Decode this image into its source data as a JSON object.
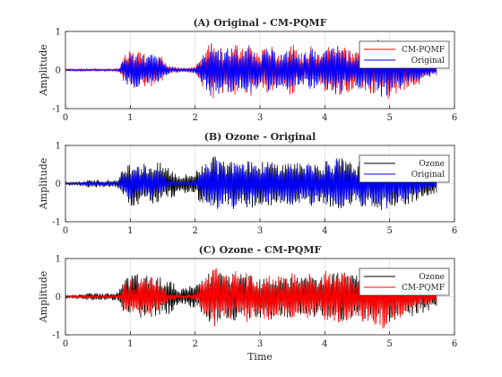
{
  "colors": {
    "black": "#000000",
    "red": "#ff0000",
    "blue": "#0000ff",
    "grid": "#dcdcdc"
  },
  "chart_data": [
    {
      "type": "line",
      "title": "(A)  Original - CM-PQMF",
      "xlabel": "",
      "ylabel": "Amplitude",
      "xlim": [
        0,
        6
      ],
      "ylim": [
        -1,
        1
      ],
      "xticks": [
        "0",
        "1",
        "2",
        "3",
        "4",
        "5",
        "6"
      ],
      "yticks": [
        "1",
        "0",
        "-1"
      ],
      "grid": true,
      "legend_position": "top-right",
      "series": [
        {
          "name": "CM-PQMF",
          "color": "red",
          "envelope": [
            0.03,
            0.03,
            0.03,
            0.03,
            0.03,
            0.03,
            0.03,
            0.03,
            0.03,
            0.03,
            0.03,
            0.03,
            0.35,
            0.48,
            0.5,
            0.52,
            0.48,
            0.45,
            0.5,
            0.42,
            0.35,
            0.15,
            0.1,
            0.08,
            0.05,
            0.05,
            0.08,
            0.1,
            0.35,
            0.55,
            0.75,
            0.8,
            0.7,
            0.6,
            0.65,
            0.7,
            0.6,
            0.55,
            0.75,
            0.6,
            0.5,
            0.55,
            0.65,
            0.6,
            0.55,
            0.5,
            0.6,
            0.7,
            0.5,
            0.45,
            0.55,
            0.65,
            0.5,
            0.4,
            0.7,
            0.6,
            0.75,
            0.8,
            0.65,
            0.55,
            0.5,
            0.6,
            0.7,
            0.65,
            0.75,
            0.8,
            0.85,
            0.75,
            0.65,
            0.6,
            0.55,
            0.5,
            0.45,
            0.4,
            0.3,
            0.25,
            0.2,
            0.15
          ]
        },
        {
          "name": "Original",
          "color": "blue",
          "envelope": [
            0.02,
            0.02,
            0.02,
            0.02,
            0.02,
            0.02,
            0.02,
            0.02,
            0.02,
            0.02,
            0.02,
            0.02,
            0.3,
            0.42,
            0.45,
            0.45,
            0.42,
            0.4,
            0.45,
            0.38,
            0.3,
            0.12,
            0.08,
            0.06,
            0.04,
            0.04,
            0.06,
            0.08,
            0.3,
            0.5,
            0.7,
            0.72,
            0.62,
            0.55,
            0.6,
            0.62,
            0.55,
            0.5,
            0.65,
            0.55,
            0.45,
            0.5,
            0.58,
            0.52,
            0.48,
            0.45,
            0.52,
            0.6,
            0.45,
            0.4,
            0.5,
            0.58,
            0.45,
            0.35,
            0.62,
            0.55,
            0.65,
            0.7,
            0.58,
            0.5,
            0.45,
            0.52,
            0.6,
            0.55,
            0.62,
            0.7,
            0.75,
            0.65,
            0.55,
            0.5,
            0.45,
            0.4,
            0.35,
            0.3,
            0.22,
            0.18,
            0.12,
            0.08
          ]
        }
      ]
    },
    {
      "type": "line",
      "title": "(B)  Ozone - Original",
      "xlabel": "",
      "ylabel": "Amplitude",
      "xlim": [
        0,
        6
      ],
      "ylim": [
        -1,
        1
      ],
      "xticks": [
        "0",
        "1",
        "2",
        "3",
        "4",
        "5",
        "6"
      ],
      "yticks": [
        "1",
        "0",
        "-1"
      ],
      "grid": true,
      "legend_position": "top-right",
      "series": [
        {
          "name": "Ozone",
          "color": "black",
          "envelope": [
            0.05,
            0.05,
            0.05,
            0.06,
            0.08,
            0.1,
            0.1,
            0.1,
            0.1,
            0.1,
            0.1,
            0.12,
            0.45,
            0.55,
            0.6,
            0.6,
            0.55,
            0.55,
            0.6,
            0.55,
            0.55,
            0.5,
            0.4,
            0.3,
            0.25,
            0.25,
            0.3,
            0.35,
            0.5,
            0.6,
            0.7,
            0.72,
            0.65,
            0.6,
            0.62,
            0.68,
            0.6,
            0.58,
            0.7,
            0.62,
            0.55,
            0.58,
            0.62,
            0.6,
            0.58,
            0.55,
            0.6,
            0.65,
            0.55,
            0.52,
            0.58,
            0.62,
            0.55,
            0.5,
            0.65,
            0.6,
            0.68,
            0.72,
            0.62,
            0.58,
            0.55,
            0.6,
            0.65,
            0.62,
            0.68,
            0.72,
            0.75,
            0.68,
            0.62,
            0.6,
            0.58,
            0.55,
            0.55,
            0.5,
            0.45,
            0.4,
            0.32,
            0.25
          ]
        },
        {
          "name": "Original",
          "color": "blue",
          "envelope": [
            0.02,
            0.02,
            0.02,
            0.03,
            0.05,
            0.05,
            0.05,
            0.05,
            0.05,
            0.05,
            0.05,
            0.05,
            0.3,
            0.42,
            0.45,
            0.45,
            0.42,
            0.4,
            0.45,
            0.38,
            0.3,
            0.12,
            0.08,
            0.06,
            0.04,
            0.04,
            0.06,
            0.08,
            0.3,
            0.5,
            0.7,
            0.72,
            0.62,
            0.55,
            0.6,
            0.62,
            0.55,
            0.5,
            0.65,
            0.55,
            0.45,
            0.5,
            0.58,
            0.52,
            0.48,
            0.45,
            0.52,
            0.6,
            0.45,
            0.4,
            0.5,
            0.58,
            0.45,
            0.35,
            0.62,
            0.55,
            0.65,
            0.7,
            0.58,
            0.5,
            0.45,
            0.52,
            0.6,
            0.55,
            0.62,
            0.7,
            0.75,
            0.65,
            0.55,
            0.5,
            0.45,
            0.4,
            0.35,
            0.3,
            0.22,
            0.18,
            0.12,
            0.08
          ]
        }
      ]
    },
    {
      "type": "line",
      "title": "(C)  Ozone - CM-PQMF",
      "xlabel": "Time",
      "ylabel": "Amplitude",
      "xlim": [
        0,
        6
      ],
      "ylim": [
        -1,
        1
      ],
      "xticks": [
        "0",
        "1",
        "2",
        "3",
        "4",
        "5",
        "6"
      ],
      "yticks": [
        "1",
        "0",
        "-1"
      ],
      "grid": true,
      "legend_position": "top-right",
      "series": [
        {
          "name": "Ozone",
          "color": "black",
          "envelope": [
            0.05,
            0.05,
            0.05,
            0.06,
            0.08,
            0.1,
            0.1,
            0.1,
            0.1,
            0.1,
            0.1,
            0.12,
            0.45,
            0.55,
            0.6,
            0.6,
            0.55,
            0.55,
            0.6,
            0.55,
            0.55,
            0.5,
            0.4,
            0.3,
            0.25,
            0.25,
            0.3,
            0.35,
            0.5,
            0.6,
            0.7,
            0.72,
            0.65,
            0.6,
            0.62,
            0.68,
            0.6,
            0.58,
            0.7,
            0.62,
            0.55,
            0.58,
            0.62,
            0.6,
            0.58,
            0.55,
            0.6,
            0.65,
            0.55,
            0.52,
            0.58,
            0.62,
            0.55,
            0.5,
            0.65,
            0.6,
            0.68,
            0.72,
            0.62,
            0.58,
            0.55,
            0.6,
            0.65,
            0.62,
            0.68,
            0.72,
            0.75,
            0.68,
            0.62,
            0.6,
            0.58,
            0.55,
            0.55,
            0.5,
            0.45,
            0.4,
            0.32,
            0.25
          ]
        },
        {
          "name": "CM-PQMF",
          "color": "red",
          "envelope": [
            0.03,
            0.03,
            0.03,
            0.03,
            0.03,
            0.03,
            0.03,
            0.03,
            0.03,
            0.03,
            0.03,
            0.03,
            0.35,
            0.48,
            0.5,
            0.52,
            0.48,
            0.45,
            0.5,
            0.42,
            0.35,
            0.15,
            0.1,
            0.08,
            0.05,
            0.05,
            0.08,
            0.1,
            0.35,
            0.55,
            0.75,
            0.8,
            0.7,
            0.6,
            0.65,
            0.7,
            0.6,
            0.55,
            0.75,
            0.6,
            0.5,
            0.55,
            0.65,
            0.6,
            0.55,
            0.5,
            0.6,
            0.7,
            0.5,
            0.45,
            0.55,
            0.65,
            0.5,
            0.4,
            0.7,
            0.6,
            0.75,
            0.8,
            0.65,
            0.55,
            0.5,
            0.6,
            0.7,
            0.65,
            0.75,
            0.8,
            0.85,
            0.75,
            0.65,
            0.6,
            0.55,
            0.5,
            0.45,
            0.4,
            0.3,
            0.25,
            0.2,
            0.15
          ]
        }
      ]
    }
  ]
}
